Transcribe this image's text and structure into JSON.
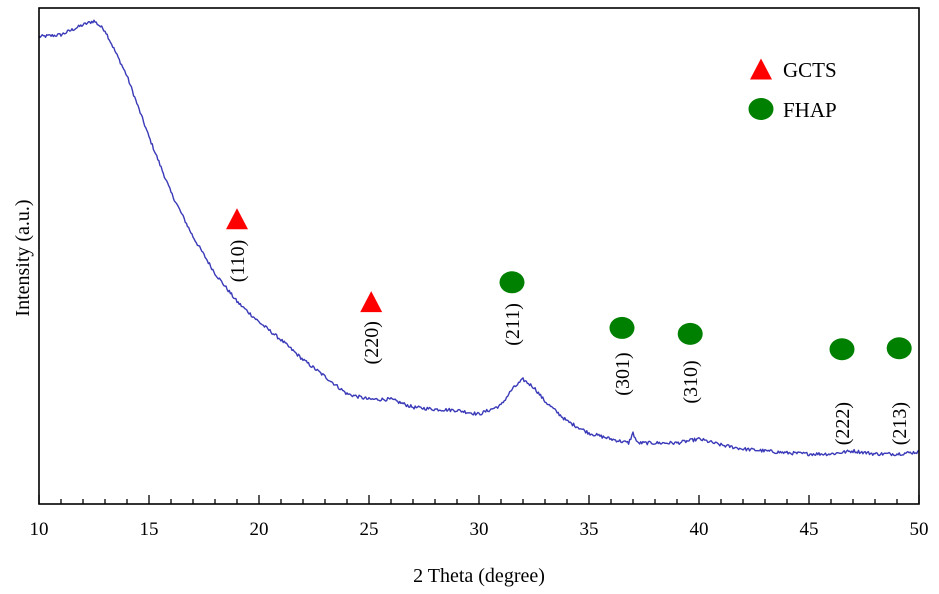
{
  "chart_data": {
    "type": "line",
    "title": "",
    "xlabel": "2 Theta (degree)",
    "ylabel": "Intensity (a.u.)",
    "xlim": [
      10,
      50
    ],
    "ylim": [
      0,
      100
    ],
    "y_ticks_shown": false,
    "grid": false,
    "legend_placement": "top-right",
    "x_ticks": [
      "10",
      "15",
      "20",
      "25",
      "30",
      "35",
      "40",
      "45",
      "50"
    ],
    "series": [
      {
        "color": "#3a3ab8",
        "x": [
          10,
          11,
          12,
          12.5,
          13,
          14,
          15,
          16,
          17,
          18,
          19,
          20,
          21,
          22,
          23,
          24,
          25,
          26,
          27,
          28,
          29,
          30,
          31,
          31.5,
          32,
          32.5,
          33,
          34,
          35,
          36,
          36.8,
          37,
          37.2,
          38,
          39,
          40,
          41,
          42,
          43,
          44,
          45,
          46,
          47,
          48,
          49,
          50
        ],
        "y": [
          94.2,
          94.6,
          96.6,
          97.4,
          95.5,
          86.3,
          74.0,
          62.8,
          53.9,
          46.5,
          40.8,
          36.7,
          33.1,
          29.1,
          25.7,
          22.2,
          21.1,
          21.1,
          19.5,
          19.1,
          18.9,
          18.1,
          19.9,
          23.1,
          25.1,
          23.5,
          20.7,
          16.7,
          14.3,
          13.1,
          12.3,
          14.3,
          12.3,
          12.3,
          12.3,
          13.1,
          11.9,
          11.1,
          10.7,
          10.3,
          10.1,
          10.1,
          10.7,
          10.1,
          10.1,
          10.5
        ]
      }
    ],
    "legend": [
      {
        "label": "GCTS",
        "marker": "triangle",
        "color": "#ff0000"
      },
      {
        "label": "FHAP",
        "marker": "circle",
        "color": "#008000"
      }
    ],
    "annotations": [
      {
        "label": "(110)",
        "x": 19.0,
        "phase": "GCTS",
        "marker_y": 57.5,
        "label_y": 49.0
      },
      {
        "label": "(220)",
        "x": 25.1,
        "phase": "GCTS",
        "marker_y": 40.8,
        "label_y": 32.5
      },
      {
        "label": "(211)",
        "x": 31.5,
        "phase": "FHAP",
        "marker_y": 44.7,
        "label_y": 36.2
      },
      {
        "label": "(301)",
        "x": 36.5,
        "phase": "FHAP",
        "marker_y": 35.5,
        "label_y": 26.2
      },
      {
        "label": "(310)",
        "x": 39.6,
        "phase": "FHAP",
        "marker_y": 34.3,
        "label_y": 24.6
      },
      {
        "label": "(222)",
        "x": 46.5,
        "phase": "FHAP",
        "marker_y": 31.2,
        "label_y": 16.2
      },
      {
        "label": "(213)",
        "x": 49.1,
        "phase": "FHAP",
        "marker_y": 31.4,
        "label_y": 16.2
      }
    ]
  }
}
